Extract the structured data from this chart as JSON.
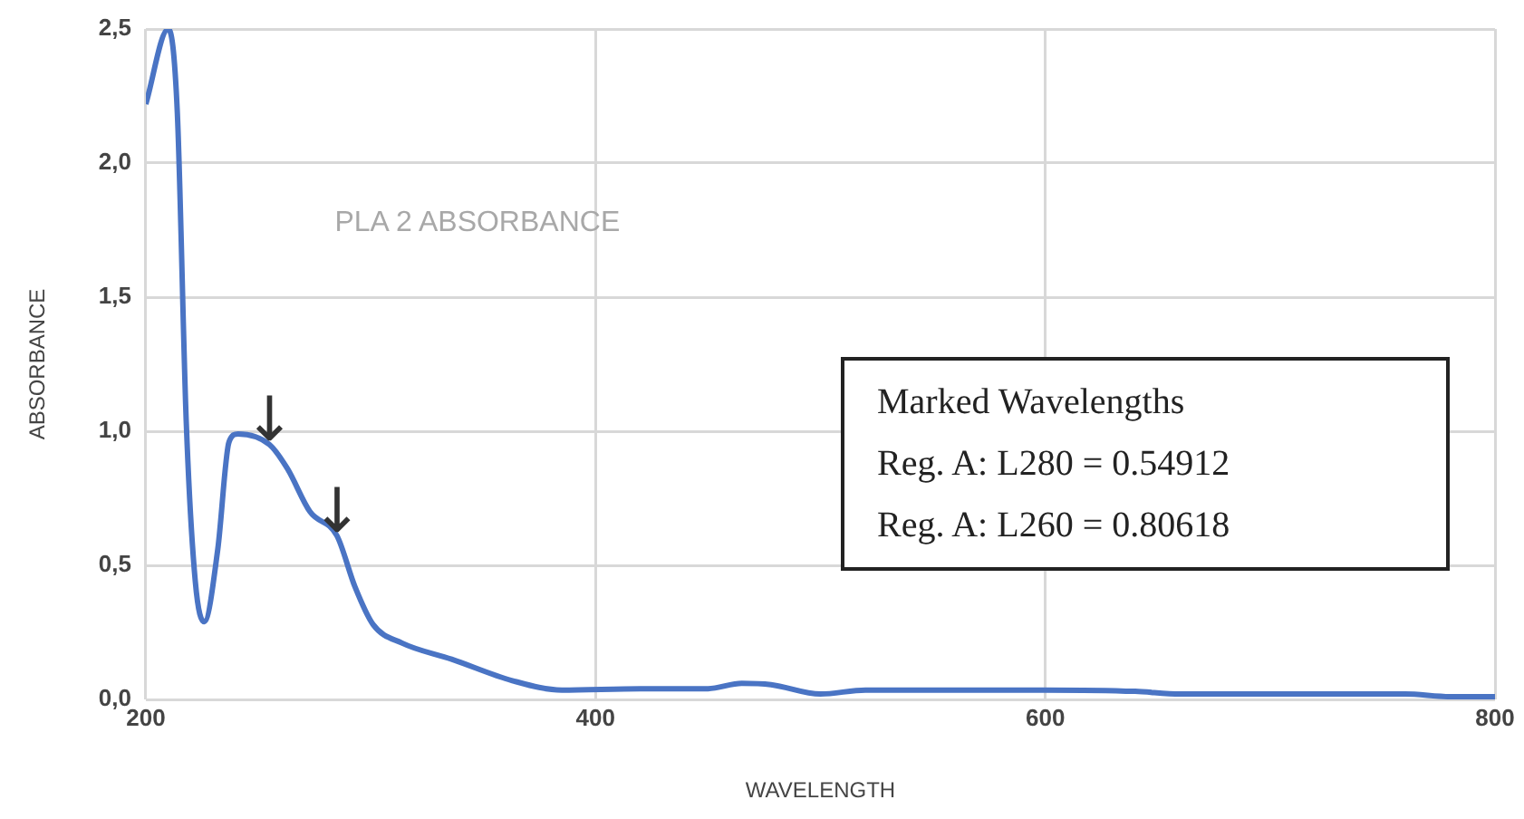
{
  "chart_data": {
    "type": "line",
    "title": "PLA 2 ABSORBANCE",
    "xlabel": "WAVELENGTH",
    "ylabel": "ABSORBANCE",
    "x": [
      200,
      210,
      214,
      218,
      222,
      226,
      232,
      237,
      241,
      255,
      263,
      273,
      285,
      293,
      301,
      314,
      336,
      363,
      385,
      420,
      450,
      465,
      478,
      500,
      520,
      560,
      600,
      640,
      660,
      700,
      760,
      780,
      800
    ],
    "series": [
      {
        "color": "#4a74c4",
        "values": [
          2.22,
          2.5,
          2.19,
          1.03,
          0.44,
          0.29,
          0.56,
          0.96,
          0.99,
          0.95,
          0.86,
          0.7,
          0.61,
          0.42,
          0.28,
          0.21,
          0.15,
          0.07,
          0.035,
          0.04,
          0.04,
          0.06,
          0.055,
          0.02,
          0.035,
          0.035,
          0.035,
          0.03,
          0.02,
          0.02,
          0.02,
          0.01,
          0.01
        ]
      }
    ],
    "xlim": [
      200,
      800
    ],
    "xticks": [
      200,
      400,
      600,
      800
    ],
    "ylim": [
      0,
      2.5
    ],
    "yticks": [
      {
        "value": 0,
        "label": "0,0"
      },
      {
        "value": 0.5,
        "label": "0,5"
      },
      {
        "value": 1,
        "label": "1,0"
      },
      {
        "value": 1.5,
        "label": "1,5"
      },
      {
        "value": 2,
        "label": "2,0"
      },
      {
        "value": 2.5,
        "label": "2,5"
      }
    ],
    "grid": true,
    "legend": false,
    "marker": "none",
    "line_style": "solid",
    "annotations": [
      {
        "text": "↓",
        "x": 255,
        "y": 0.95
      },
      {
        "text": "↓",
        "x": 285,
        "y": 0.61
      },
      "Marked Wavelengths",
      "Reg. A: L280 = 0.54912",
      "Reg. A: L260 = 0.80618"
    ]
  }
}
